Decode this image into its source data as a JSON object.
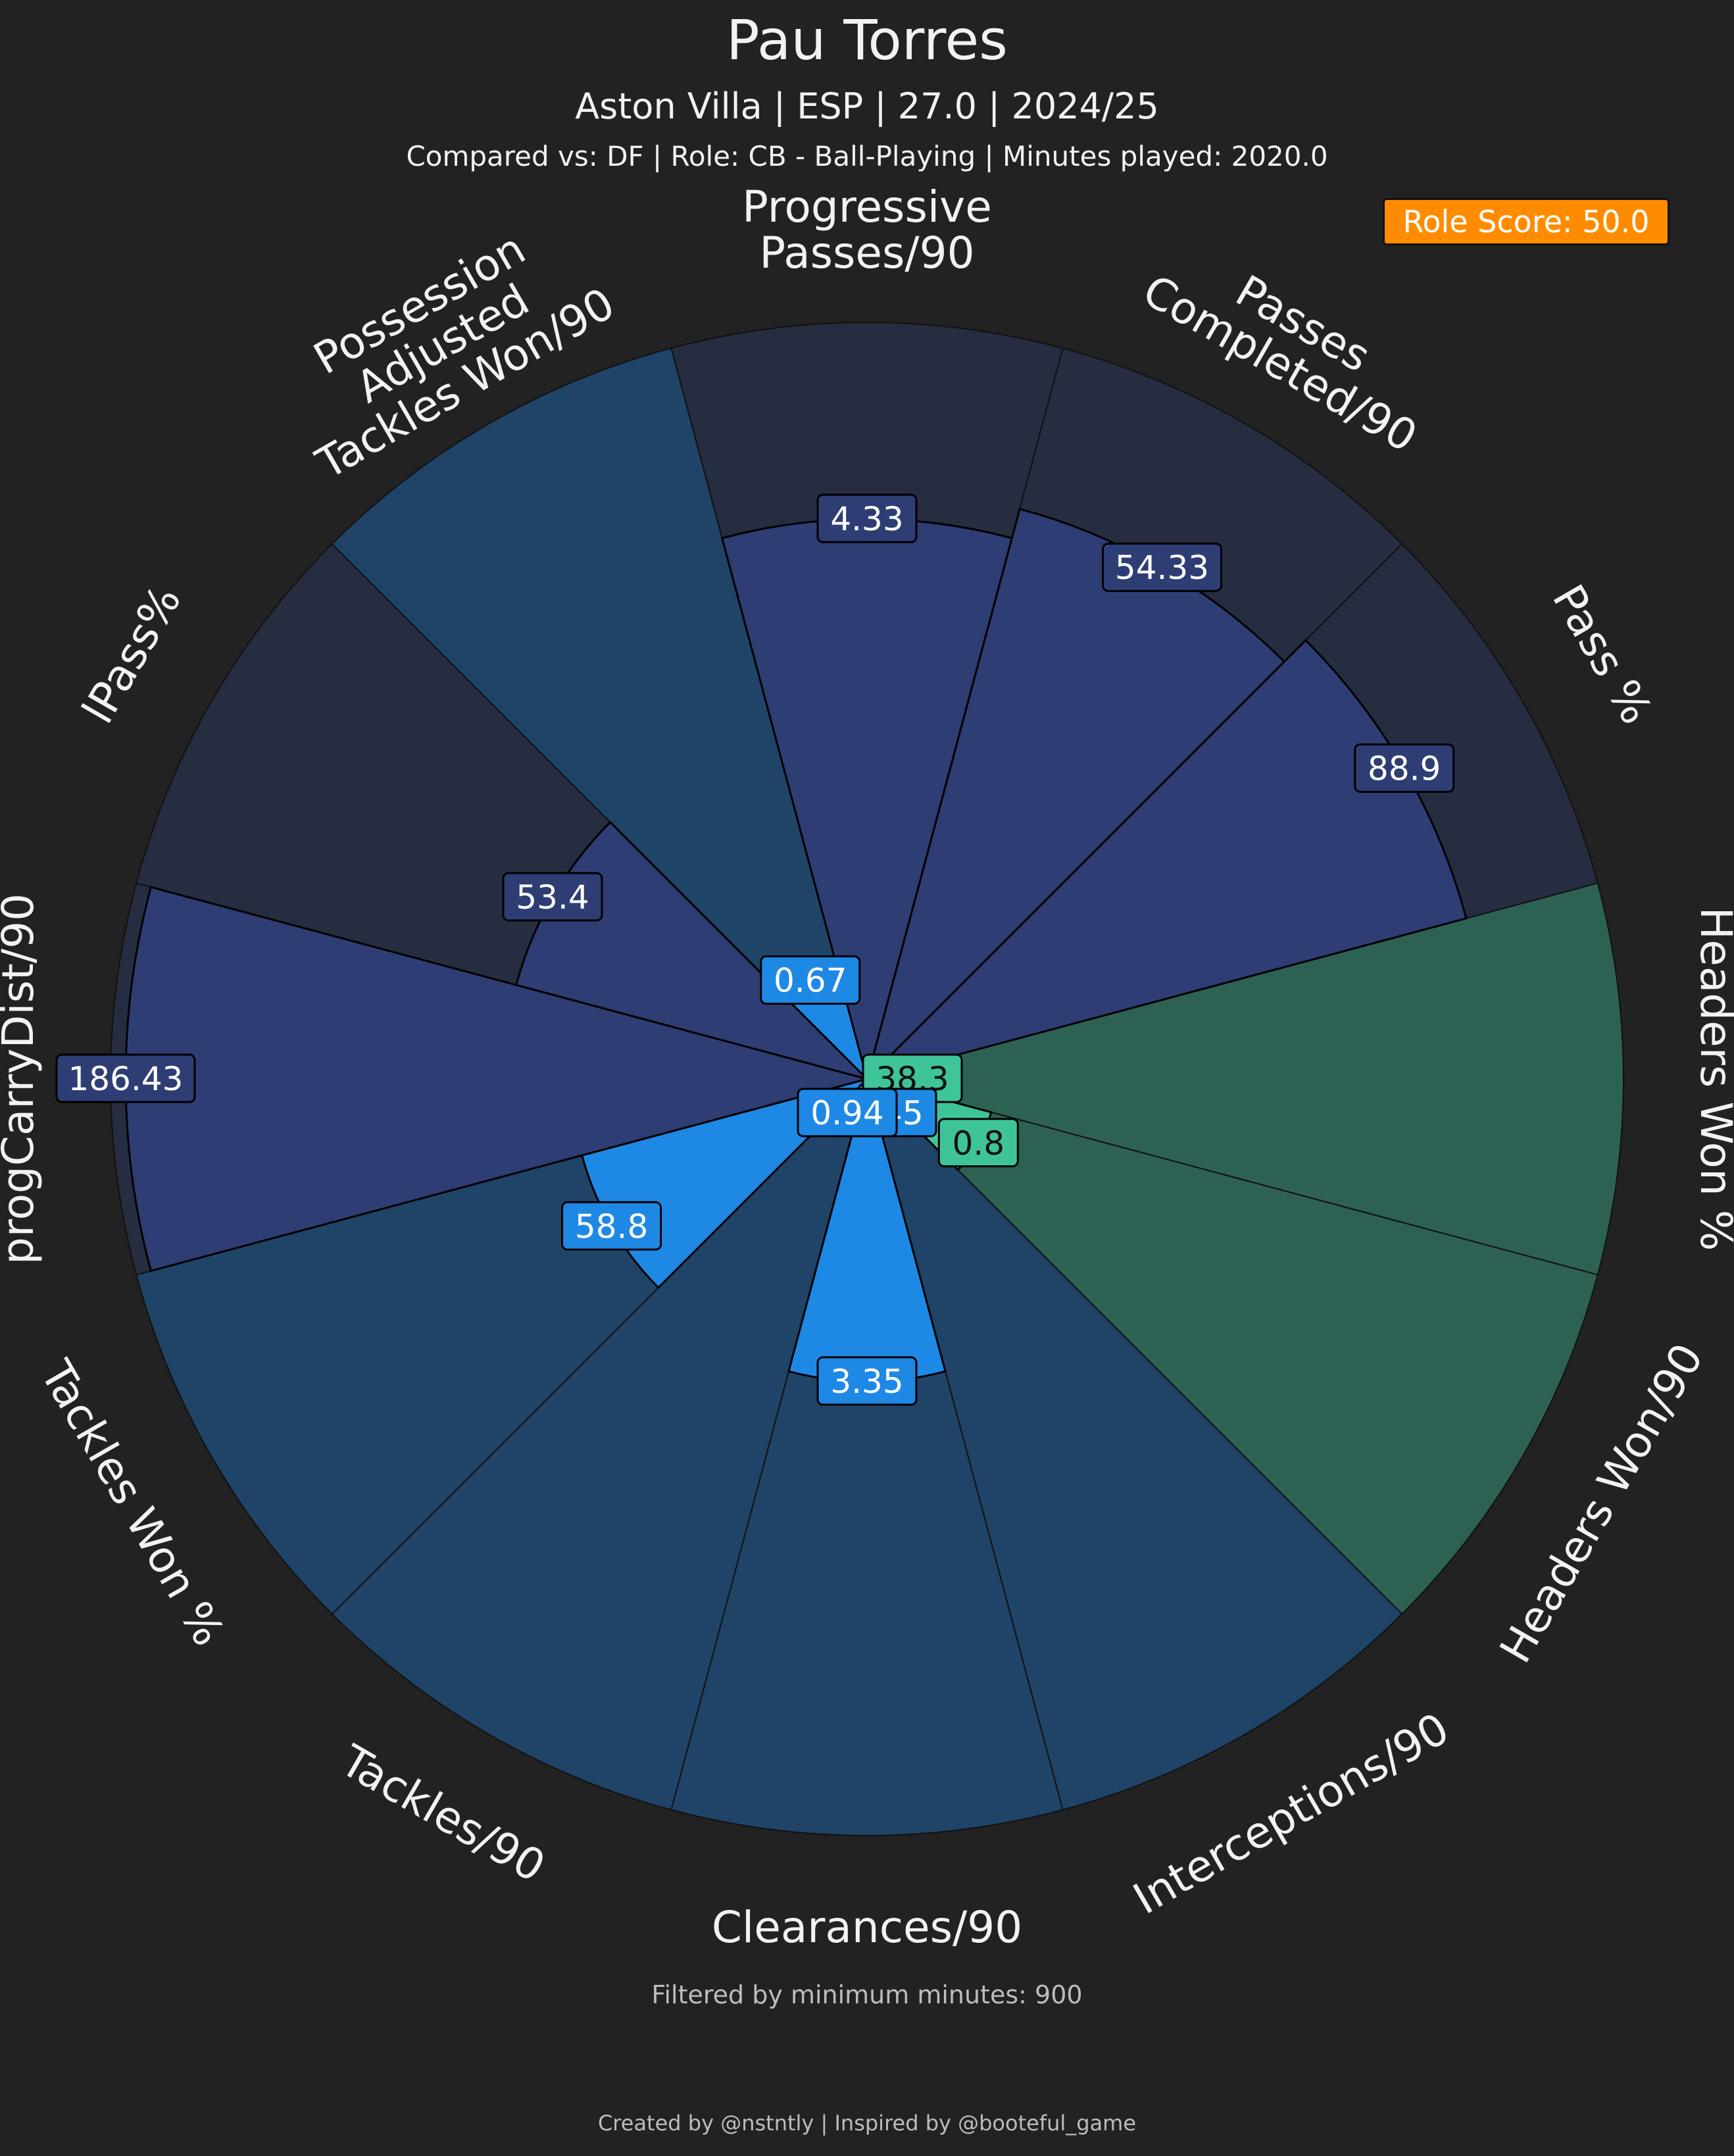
{
  "header": {
    "title": "Pau Torres",
    "subtitle": "Aston Villa | ESP | 27.0 | 2024/25",
    "compared": "Compared vs: DF | Role: CB - Ball-Playing | Minutes played: 2020.0",
    "role_score": "Role Score: 50.0"
  },
  "footer": {
    "filter": "Filtered by minimum minutes: 900",
    "credit": "Created by @nstntly | Inspired by @booteful_game"
  },
  "colors": {
    "background": "#222222",
    "possession": "#2e3d73",
    "possession_bg": "#262d40",
    "defending": "#1e88e5",
    "defending_bg": "#1f4468",
    "aerial": "#3fc49a",
    "aerial_bg": "#2d6154",
    "badge": "#ff8c00"
  },
  "chart_data": {
    "type": "radar",
    "description": "Pizza chart; wedge length = percentile rank; label = raw value",
    "categories": [
      {
        "label": "Progressive\nPasses/90",
        "value": "4.33",
        "percentile": 74,
        "group": "possession"
      },
      {
        "label": "Passes\nCompleted/90",
        "value": "54.33",
        "percentile": 78,
        "group": "possession"
      },
      {
        "label": "Pass %",
        "value": "88.9",
        "percentile": 82,
        "group": "possession"
      },
      {
        "label": "Headers Won %",
        "value": "38.3",
        "percentile": 6,
        "group": "aerial"
      },
      {
        "label": "Headers Won/90",
        "value": "0.8",
        "percentile": 17,
        "group": "aerial"
      },
      {
        "label": "Interceptions/90",
        "value": "0.45",
        "percentile": 0,
        "group": "defending"
      },
      {
        "label": "Clearances/90",
        "value": "3.35",
        "percentile": 40,
        "group": "defending"
      },
      {
        "label": "Tackles/90",
        "value": "0.94",
        "percentile": 5,
        "group": "defending"
      },
      {
        "label": "Tackles Won %",
        "value": "58.8",
        "percentile": 39,
        "group": "defending"
      },
      {
        "label": "progCarryDist/90",
        "value": "186.43",
        "percentile": 98,
        "group": "possession"
      },
      {
        "label": "lPass%",
        "value": "53.4",
        "percentile": 48,
        "group": "possession"
      },
      {
        "label": "Possession\nAdjusted\nTackles Won/90",
        "value": "0.67",
        "percentile": 15,
        "group": "defending"
      }
    ],
    "percentile_range": [
      0,
      100
    ]
  }
}
